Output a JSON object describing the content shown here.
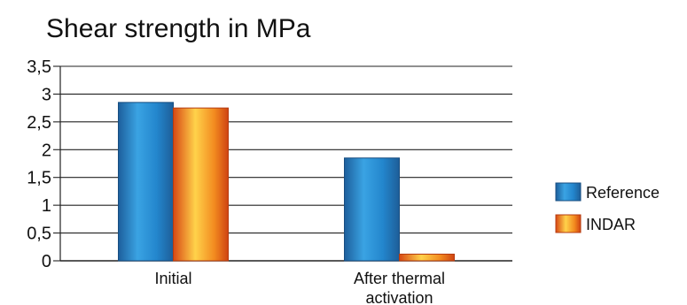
{
  "chart_data": {
    "type": "bar",
    "title": "Shear strength in  MPa",
    "xlabel": "",
    "ylabel": "",
    "categories": [
      "Initial",
      "After thermal activation"
    ],
    "category_lines": [
      [
        "Initial"
      ],
      [
        "After thermal",
        "activation"
      ]
    ],
    "series": [
      {
        "name": "Reference",
        "values": [
          2.85,
          1.85
        ]
      },
      {
        "name": "INDAR",
        "values": [
          2.75,
          0.12
        ]
      }
    ],
    "ylim": [
      0,
      3.5
    ],
    "yticks": [
      0,
      0.5,
      1,
      1.5,
      2,
      2.5,
      3,
      3.5
    ],
    "ytick_labels": [
      "0",
      "0,5",
      "1",
      "1,5",
      "2",
      "2,5",
      "3",
      "3,5"
    ],
    "grid": true,
    "legend_position": "right",
    "colors": {
      "reference": "#2f8fd1",
      "indar": "#f08a1c",
      "grid": "#222222"
    }
  }
}
